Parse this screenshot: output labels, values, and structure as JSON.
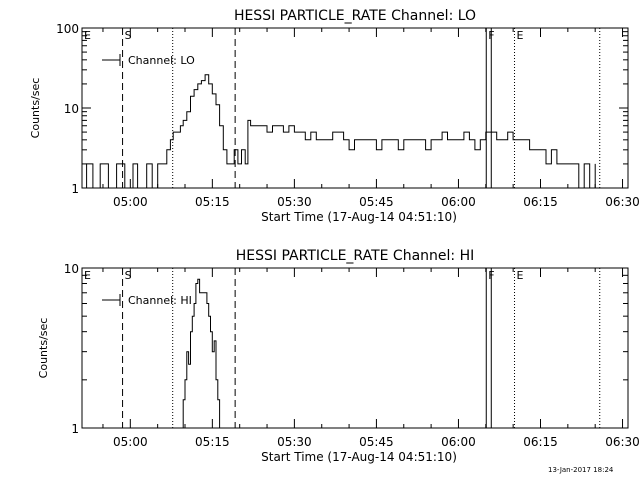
{
  "footer": {
    "timestamp": "13-Jan-2017 18:24"
  },
  "chart_data": [
    {
      "type": "line",
      "title": "HESSI PARTICLE_RATE Channel: LO",
      "xlabel": "Start Time (17-Aug-14 04:51:10)",
      "ylabel": "Counts/sec",
      "xlim": [
        "04:51:10",
        "06:31:00"
      ],
      "ylim": [
        1,
        100
      ],
      "yscale": "log",
      "xticks": [
        "05:00",
        "05:15",
        "05:30",
        "05:45",
        "06:00",
        "06:15",
        "06:30"
      ],
      "yticks": [
        "1",
        "10",
        "100"
      ],
      "legend": {
        "entries": [
          "Channel: LO"
        ],
        "placement": "top-left"
      },
      "markers": [
        {
          "time": "04:51:10",
          "label": "E",
          "style": "solid"
        },
        {
          "time": "04:58:35",
          "label": "S",
          "style": "dashed"
        },
        {
          "time": "05:07:45",
          "label": "",
          "style": "dotted"
        },
        {
          "time": "05:19:10",
          "label": "",
          "style": "dashed"
        },
        {
          "time": "06:05:05",
          "label": "F",
          "style": "solid"
        },
        {
          "time": "06:06:00",
          "label": "",
          "style": "solid"
        },
        {
          "time": "06:10:15",
          "label": "E",
          "style": "dotted"
        },
        {
          "time": "06:25:50",
          "label": "",
          "style": "dotted"
        }
      ],
      "series": [
        {
          "name": "Channel: LO",
          "x": [
            "04:51:10",
            "04:52:00",
            "04:52:40",
            "04:53:10",
            "04:54:00",
            "04:54:30",
            "04:55:00",
            "04:56:00",
            "04:57:00",
            "04:57:30",
            "04:58:30",
            "04:59:00",
            "04:59:40",
            "05:00:30",
            "05:01:00",
            "05:01:20",
            "05:02:00",
            "05:03:00",
            "05:03:20",
            "05:04:00",
            "05:05:00",
            "05:06:00",
            "05:06:40",
            "05:07:20",
            "05:07:50",
            "05:08:30",
            "05:09:10",
            "05:09:40",
            "05:10:20",
            "05:11:00",
            "05:11:40",
            "05:12:20",
            "05:13:00",
            "05:13:40",
            "05:14:20",
            "05:15:00",
            "05:15:40",
            "05:16:20",
            "05:17:00",
            "05:17:40",
            "05:18:20",
            "05:19:00",
            "05:19:40",
            "05:20:20",
            "05:21:00",
            "05:21:30",
            "05:22:00",
            "05:23:00",
            "05:24:00",
            "05:25:00",
            "05:26:00",
            "05:27:00",
            "05:28:00",
            "05:29:00",
            "05:30:00",
            "05:31:00",
            "05:32:00",
            "05:33:00",
            "05:34:00",
            "05:35:00",
            "05:36:00",
            "05:37:00",
            "05:38:00",
            "05:39:00",
            "05:40:00",
            "05:41:00",
            "05:42:00",
            "05:43:00",
            "05:44:00",
            "05:45:00",
            "05:46:00",
            "05:47:00",
            "05:48:00",
            "05:49:00",
            "05:50:00",
            "05:51:00",
            "05:52:00",
            "05:53:00",
            "05:54:00",
            "05:55:00",
            "05:56:00",
            "05:57:00",
            "05:58:00",
            "05:59:00",
            "06:00:00",
            "06:01:00",
            "06:02:00",
            "06:03:00",
            "06:04:00",
            "06:05:00",
            "06:06:00",
            "06:07:00",
            "06:08:00",
            "06:09:00",
            "06:10:00",
            "06:11:00",
            "06:12:00",
            "06:13:00",
            "06:14:00",
            "06:15:00",
            "06:16:00",
            "06:17:00",
            "06:18:00",
            "06:19:00",
            "06:20:00",
            "06:21:00",
            "06:22:00",
            "06:23:00",
            "06:24:00",
            "06:25:00"
          ],
          "y": [
            1,
            2,
            2,
            1,
            1,
            2,
            2,
            1,
            1,
            2,
            2,
            1,
            1,
            2,
            2,
            1,
            1,
            2,
            2,
            1,
            2,
            2,
            3,
            4,
            5,
            5,
            6,
            7,
            9,
            14,
            17,
            20,
            22,
            26,
            20,
            15,
            11,
            6,
            3,
            2,
            2,
            3,
            2,
            3,
            2,
            7,
            6,
            6,
            6,
            5,
            6,
            6,
            5,
            6,
            5,
            5,
            4,
            5,
            4,
            4,
            4,
            5,
            5,
            4,
            3,
            4,
            4,
            4,
            4,
            3,
            4,
            4,
            4,
            3,
            4,
            4,
            4,
            4,
            3,
            4,
            4,
            5,
            4,
            4,
            4,
            5,
            4,
            3,
            4,
            5,
            5,
            4,
            4,
            5,
            4,
            4,
            4,
            3,
            3,
            3,
            2,
            3,
            2,
            2,
            2,
            2,
            1,
            2,
            1,
            2
          ]
        }
      ]
    },
    {
      "type": "line",
      "title": "HESSI PARTICLE_RATE Channel: HI",
      "xlabel": "Start Time (17-Aug-14 04:51:10)",
      "ylabel": "Counts/sec",
      "xlim": [
        "04:51:10",
        "06:31:00"
      ],
      "ylim": [
        1,
        10
      ],
      "yscale": "log",
      "xticks": [
        "05:00",
        "05:15",
        "05:30",
        "05:45",
        "06:00",
        "06:15",
        "06:30"
      ],
      "yticks": [
        "1",
        "10"
      ],
      "legend": {
        "entries": [
          "Channel: HI"
        ],
        "placement": "top-left"
      },
      "markers": [
        {
          "time": "04:51:10",
          "label": "E",
          "style": "solid"
        },
        {
          "time": "04:58:35",
          "label": "S",
          "style": "dashed"
        },
        {
          "time": "05:07:45",
          "label": "",
          "style": "dotted"
        },
        {
          "time": "05:19:10",
          "label": "",
          "style": "dashed"
        },
        {
          "time": "06:05:05",
          "label": "F",
          "style": "solid"
        },
        {
          "time": "06:06:00",
          "label": "",
          "style": "solid"
        },
        {
          "time": "06:10:15",
          "label": "E",
          "style": "dotted"
        },
        {
          "time": "06:25:50",
          "label": "",
          "style": "dotted"
        }
      ],
      "series": [
        {
          "name": "Channel: HI",
          "x": [
            "05:09:20",
            "05:09:40",
            "05:10:00",
            "05:10:20",
            "05:10:40",
            "05:11:00",
            "05:11:20",
            "05:11:40",
            "05:12:00",
            "05:12:20",
            "05:12:40",
            "05:13:00",
            "05:13:20",
            "05:13:40",
            "05:14:00",
            "05:14:20",
            "05:14:40",
            "05:15:00",
            "05:15:20",
            "05:15:40",
            "05:16:00",
            "05:16:20",
            "05:16:40"
          ],
          "y": [
            1,
            1.5,
            2,
            3,
            2.5,
            4,
            5,
            6,
            8,
            8.5,
            7,
            7,
            7,
            7,
            6,
            5,
            4,
            3,
            3.5,
            2,
            1.5,
            1,
            1
          ]
        }
      ]
    }
  ]
}
